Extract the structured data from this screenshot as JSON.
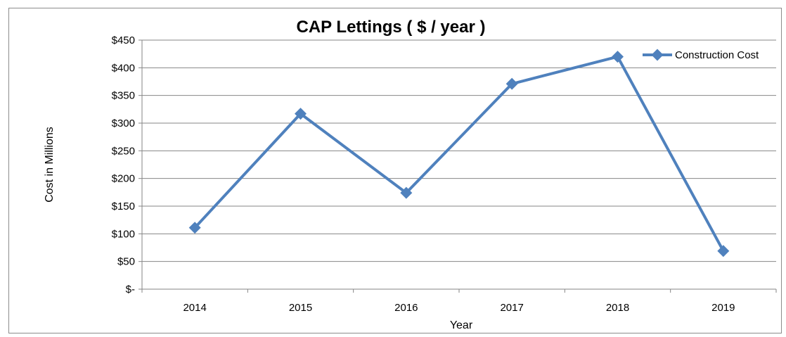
{
  "chart_data": {
    "type": "line",
    "title": "CAP Lettings ( $ / year )",
    "xlabel": "Year",
    "ylabel": "Cost in  Millions",
    "categories": [
      "2014",
      "2015",
      "2016",
      "2017",
      "2018",
      "2019"
    ],
    "y_tick_labels": [
      "$-",
      "$50",
      "$100",
      "$150",
      "$200",
      "$250",
      "$300",
      "$350",
      "$400",
      "$450"
    ],
    "ylim": [
      0,
      450
    ],
    "y_step": 50,
    "grid": "horizontal",
    "legend_position": "top-right",
    "series": [
      {
        "name": "Construction Cost",
        "values": [
          111,
          317,
          174,
          371,
          420,
          69
        ],
        "color": "#4f81bd"
      }
    ]
  }
}
